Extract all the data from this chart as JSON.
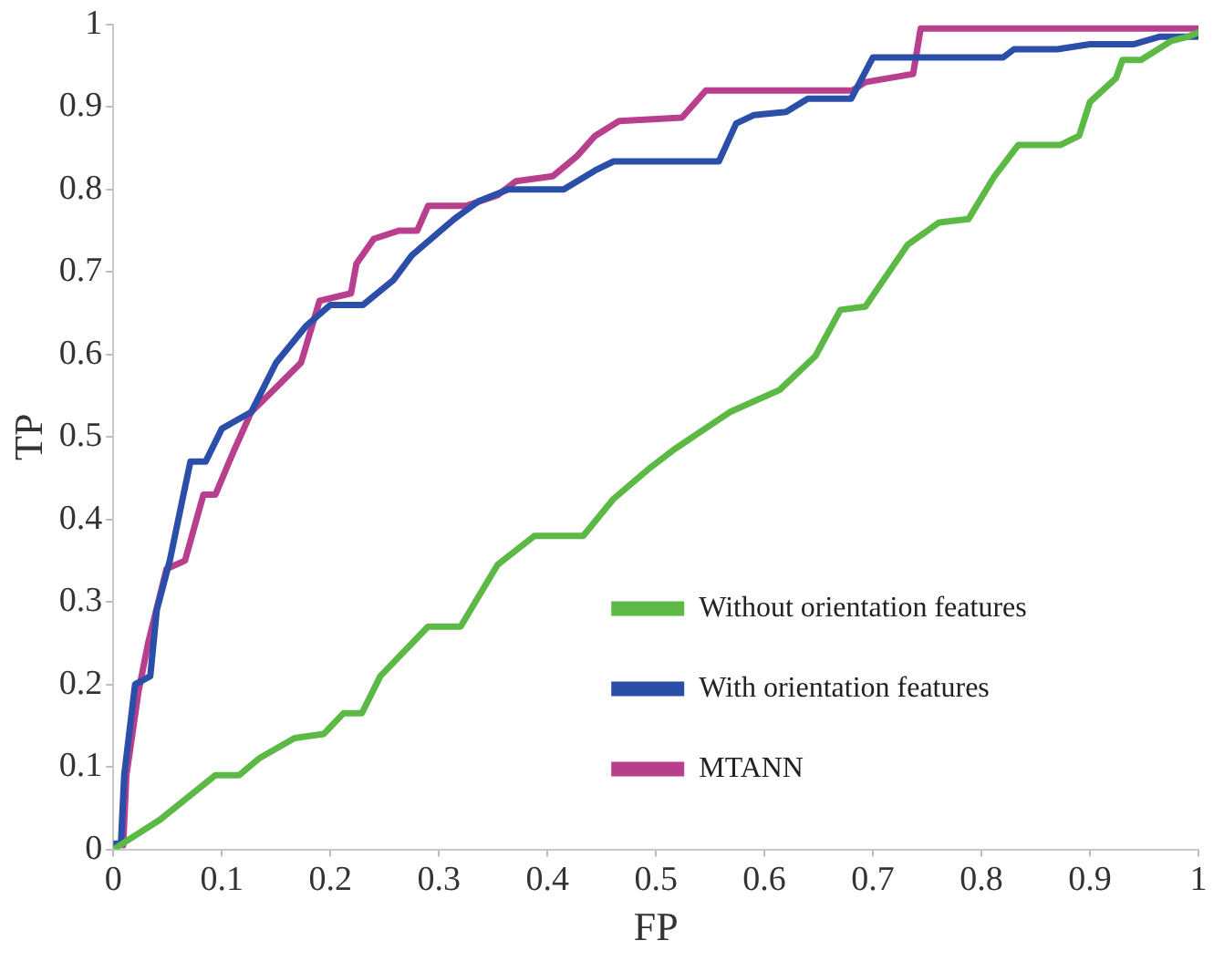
{
  "chart_data": {
    "type": "line",
    "xlabel": "FP",
    "ylabel": "TP",
    "xlim": [
      0,
      1
    ],
    "ylim": [
      0,
      1
    ],
    "xticks": [
      0,
      0.1,
      0.2,
      0.3,
      0.4,
      0.5,
      0.6,
      0.7,
      0.8,
      0.9,
      1
    ],
    "yticks": [
      0,
      0.1,
      0.2,
      0.3,
      0.4,
      0.5,
      0.6,
      0.7,
      0.8,
      0.9,
      1
    ],
    "grid": false,
    "legend": "bottom right",
    "marker": "none",
    "line_style": "solid",
    "series": [
      {
        "name": "Without orientation features",
        "color": "#5cb946",
        "x": [
          0,
          0.043,
          0.094,
          0.116,
          0.134,
          0.167,
          0.194,
          0.212,
          0.229,
          0.246,
          0.29,
          0.32,
          0.354,
          0.388,
          0.433,
          0.461,
          0.495,
          0.517,
          0.568,
          0.614,
          0.647,
          0.67,
          0.693,
          0.732,
          0.761,
          0.788,
          0.812,
          0.834,
          0.873,
          0.89,
          0.9,
          0.924,
          0.93,
          0.947,
          0.975,
          0.99,
          1
        ],
        "values": [
          0,
          0.036,
          0.09,
          0.09,
          0.11,
          0.135,
          0.14,
          0.165,
          0.165,
          0.21,
          0.27,
          0.27,
          0.345,
          0.38,
          0.38,
          0.425,
          0.463,
          0.485,
          0.53,
          0.557,
          0.598,
          0.654,
          0.658,
          0.733,
          0.76,
          0.764,
          0.816,
          0.854,
          0.854,
          0.865,
          0.906,
          0.935,
          0.957,
          0.957,
          0.98,
          0.985,
          0.99
        ]
      },
      {
        "name": "With orientation features",
        "color": "#2b4fa8",
        "x": [
          0,
          0.007,
          0.01,
          0.02,
          0.034,
          0.04,
          0.052,
          0.063,
          0.071,
          0.085,
          0.1,
          0.127,
          0.15,
          0.178,
          0.2,
          0.23,
          0.258,
          0.275,
          0.314,
          0.337,
          0.364,
          0.415,
          0.444,
          0.461,
          0.558,
          0.574,
          0.59,
          0.62,
          0.64,
          0.68,
          0.7,
          0.82,
          0.83,
          0.87,
          0.9,
          0.94,
          0.964,
          0.998
        ],
        "values": [
          0.007,
          0.007,
          0.09,
          0.2,
          0.21,
          0.29,
          0.35,
          0.42,
          0.47,
          0.47,
          0.51,
          0.53,
          0.59,
          0.635,
          0.66,
          0.66,
          0.69,
          0.72,
          0.764,
          0.786,
          0.8,
          0.8,
          0.823,
          0.834,
          0.834,
          0.88,
          0.89,
          0.894,
          0.91,
          0.91,
          0.96,
          0.96,
          0.97,
          0.97,
          0.976,
          0.976,
          0.985,
          0.985
        ]
      },
      {
        "name": "MTANN",
        "color": "#b83f8e",
        "x": [
          0.009,
          0.012,
          0.023,
          0.032,
          0.049,
          0.066,
          0.083,
          0.094,
          0.11,
          0.127,
          0.15,
          0.173,
          0.19,
          0.219,
          0.224,
          0.24,
          0.263,
          0.28,
          0.29,
          0.325,
          0.354,
          0.371,
          0.405,
          0.427,
          0.444,
          0.466,
          0.524,
          0.546,
          0.681,
          0.693,
          0.737,
          0.744,
          1
        ],
        "values": [
          0.005,
          0.09,
          0.19,
          0.25,
          0.34,
          0.35,
          0.43,
          0.43,
          0.48,
          0.53,
          0.56,
          0.59,
          0.665,
          0.674,
          0.71,
          0.74,
          0.75,
          0.75,
          0.78,
          0.78,
          0.793,
          0.81,
          0.816,
          0.84,
          0.865,
          0.883,
          0.887,
          0.92,
          0.92,
          0.93,
          0.94,
          0.995,
          0.995
        ]
      }
    ]
  }
}
